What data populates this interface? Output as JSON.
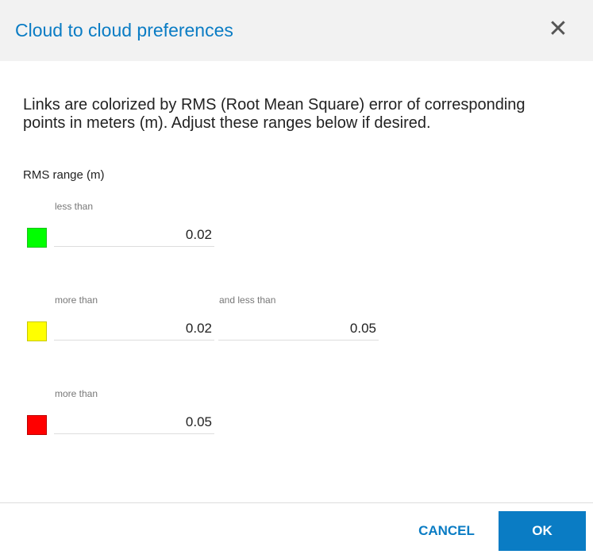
{
  "dialog": {
    "title": "Cloud to cloud preferences",
    "close_icon": "close-icon"
  },
  "description": "Links are colorized by RMS (Root Mean Square) error of corresponding points in meters (m). Adjust these ranges below if desired.",
  "range_label": "RMS range (m)",
  "rows": [
    {
      "color": "#00ff00",
      "label1": "less than",
      "value1": "0.02"
    },
    {
      "color": "#ffff00",
      "label1": "more than",
      "value1": "0.02",
      "label2": "and less than",
      "value2": "0.05"
    },
    {
      "color": "#ff0000",
      "label1": "more than",
      "value1": "0.05"
    }
  ],
  "footer": {
    "cancel_label": "CANCEL",
    "ok_label": "OK"
  }
}
